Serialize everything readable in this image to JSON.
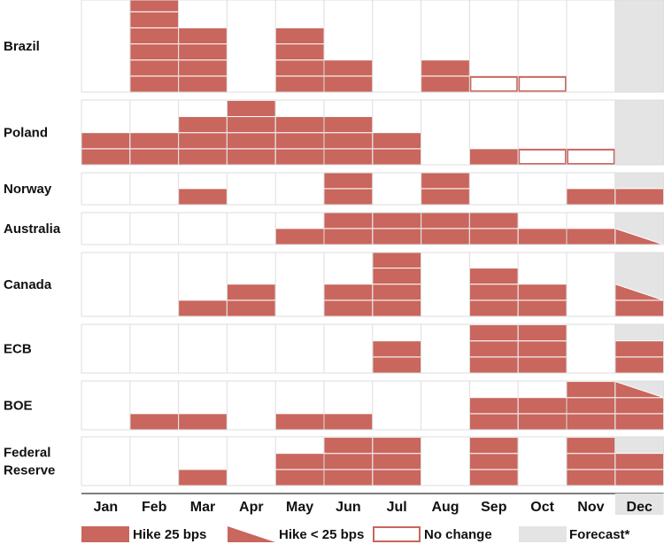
{
  "colors": {
    "hike": "#c9665d",
    "grid": "#dddddd",
    "forecast": "#e4e4e4",
    "text": "#111111"
  },
  "chart_data": {
    "type": "bar",
    "categories": [
      "Jan",
      "Feb",
      "Mar",
      "Apr",
      "May",
      "Jun",
      "Jul",
      "Aug",
      "Sep",
      "Oct",
      "Nov",
      "Dec"
    ],
    "forecast_months": [
      "Dec"
    ],
    "hike_unit": "25 bps",
    "cell_codes": "H = number of full 25 bps hikes stacked, P = partial hike < 25 bps on top, N = no change",
    "rows": [
      {
        "name": "Brazil",
        "label_lines": [
          "Brazil"
        ],
        "cells": [
          {
            "H": 0
          },
          {
            "H": 6
          },
          {
            "H": 4
          },
          {
            "H": 0
          },
          {
            "H": 4
          },
          {
            "H": 2
          },
          {
            "H": 0
          },
          {
            "H": 2
          },
          {
            "N": true
          },
          {
            "N": true
          },
          {
            "H": 0
          },
          {
            "H": 0
          }
        ]
      },
      {
        "name": "Poland",
        "label_lines": [
          "Poland"
        ],
        "cells": [
          {
            "H": 2
          },
          {
            "H": 2
          },
          {
            "H": 3
          },
          {
            "H": 4
          },
          {
            "H": 3
          },
          {
            "H": 3
          },
          {
            "H": 2
          },
          {
            "H": 0
          },
          {
            "H": 1
          },
          {
            "N": true
          },
          {
            "N": true
          },
          {
            "H": 0
          }
        ]
      },
      {
        "name": "Norway",
        "label_lines": [
          "Norway"
        ],
        "cells": [
          {
            "H": 0
          },
          {
            "H": 0
          },
          {
            "H": 1
          },
          {
            "H": 0
          },
          {
            "H": 0
          },
          {
            "H": 2
          },
          {
            "H": 0
          },
          {
            "H": 2
          },
          {
            "H": 0
          },
          {
            "H": 0
          },
          {
            "H": 1
          },
          {
            "H": 1
          }
        ]
      },
      {
        "name": "Australia",
        "label_lines": [
          "Australia"
        ],
        "cells": [
          {
            "H": 0
          },
          {
            "H": 0
          },
          {
            "H": 0
          },
          {
            "H": 0
          },
          {
            "H": 1
          },
          {
            "H": 2
          },
          {
            "H": 2
          },
          {
            "H": 2
          },
          {
            "H": 2
          },
          {
            "H": 1
          },
          {
            "H": 1
          },
          {
            "H": 0,
            "P": true
          }
        ]
      },
      {
        "name": "Canada",
        "label_lines": [
          "Canada"
        ],
        "cells": [
          {
            "H": 0
          },
          {
            "H": 0
          },
          {
            "H": 1
          },
          {
            "H": 2
          },
          {
            "H": 0
          },
          {
            "H": 2
          },
          {
            "H": 4
          },
          {
            "H": 0
          },
          {
            "H": 3
          },
          {
            "H": 2
          },
          {
            "H": 0
          },
          {
            "H": 1,
            "P": true
          }
        ]
      },
      {
        "name": "ECB",
        "label_lines": [
          "ECB"
        ],
        "cells": [
          {
            "H": 0
          },
          {
            "H": 0
          },
          {
            "H": 0
          },
          {
            "H": 0
          },
          {
            "H": 0
          },
          {
            "H": 0
          },
          {
            "H": 2
          },
          {
            "H": 0
          },
          {
            "H": 3
          },
          {
            "H": 3
          },
          {
            "H": 0
          },
          {
            "H": 2
          }
        ]
      },
      {
        "name": "BOE",
        "label_lines": [
          "BOE"
        ],
        "cells": [
          {
            "H": 0
          },
          {
            "H": 1
          },
          {
            "H": 1
          },
          {
            "H": 0
          },
          {
            "H": 1
          },
          {
            "H": 1
          },
          {
            "H": 0
          },
          {
            "H": 0
          },
          {
            "H": 2
          },
          {
            "H": 2
          },
          {
            "H": 3
          },
          {
            "H": 2,
            "P": true
          }
        ]
      },
      {
        "name": "Federal Reserve",
        "label_lines": [
          "Federal",
          "Reserve"
        ],
        "cells": [
          {
            "H": 0
          },
          {
            "H": 0
          },
          {
            "H": 1
          },
          {
            "H": 0
          },
          {
            "H": 2
          },
          {
            "H": 3
          },
          {
            "H": 3
          },
          {
            "H": 0
          },
          {
            "H": 3
          },
          {
            "H": 0
          },
          {
            "H": 3
          },
          {
            "H": 2
          }
        ]
      }
    ],
    "legend": [
      {
        "key": "hike",
        "label": "Hike 25 bps"
      },
      {
        "key": "partial",
        "label": "Hike < 25 bps"
      },
      {
        "key": "nochange",
        "label": "No change"
      },
      {
        "key": "forecast",
        "label": "Forecast*"
      }
    ]
  }
}
